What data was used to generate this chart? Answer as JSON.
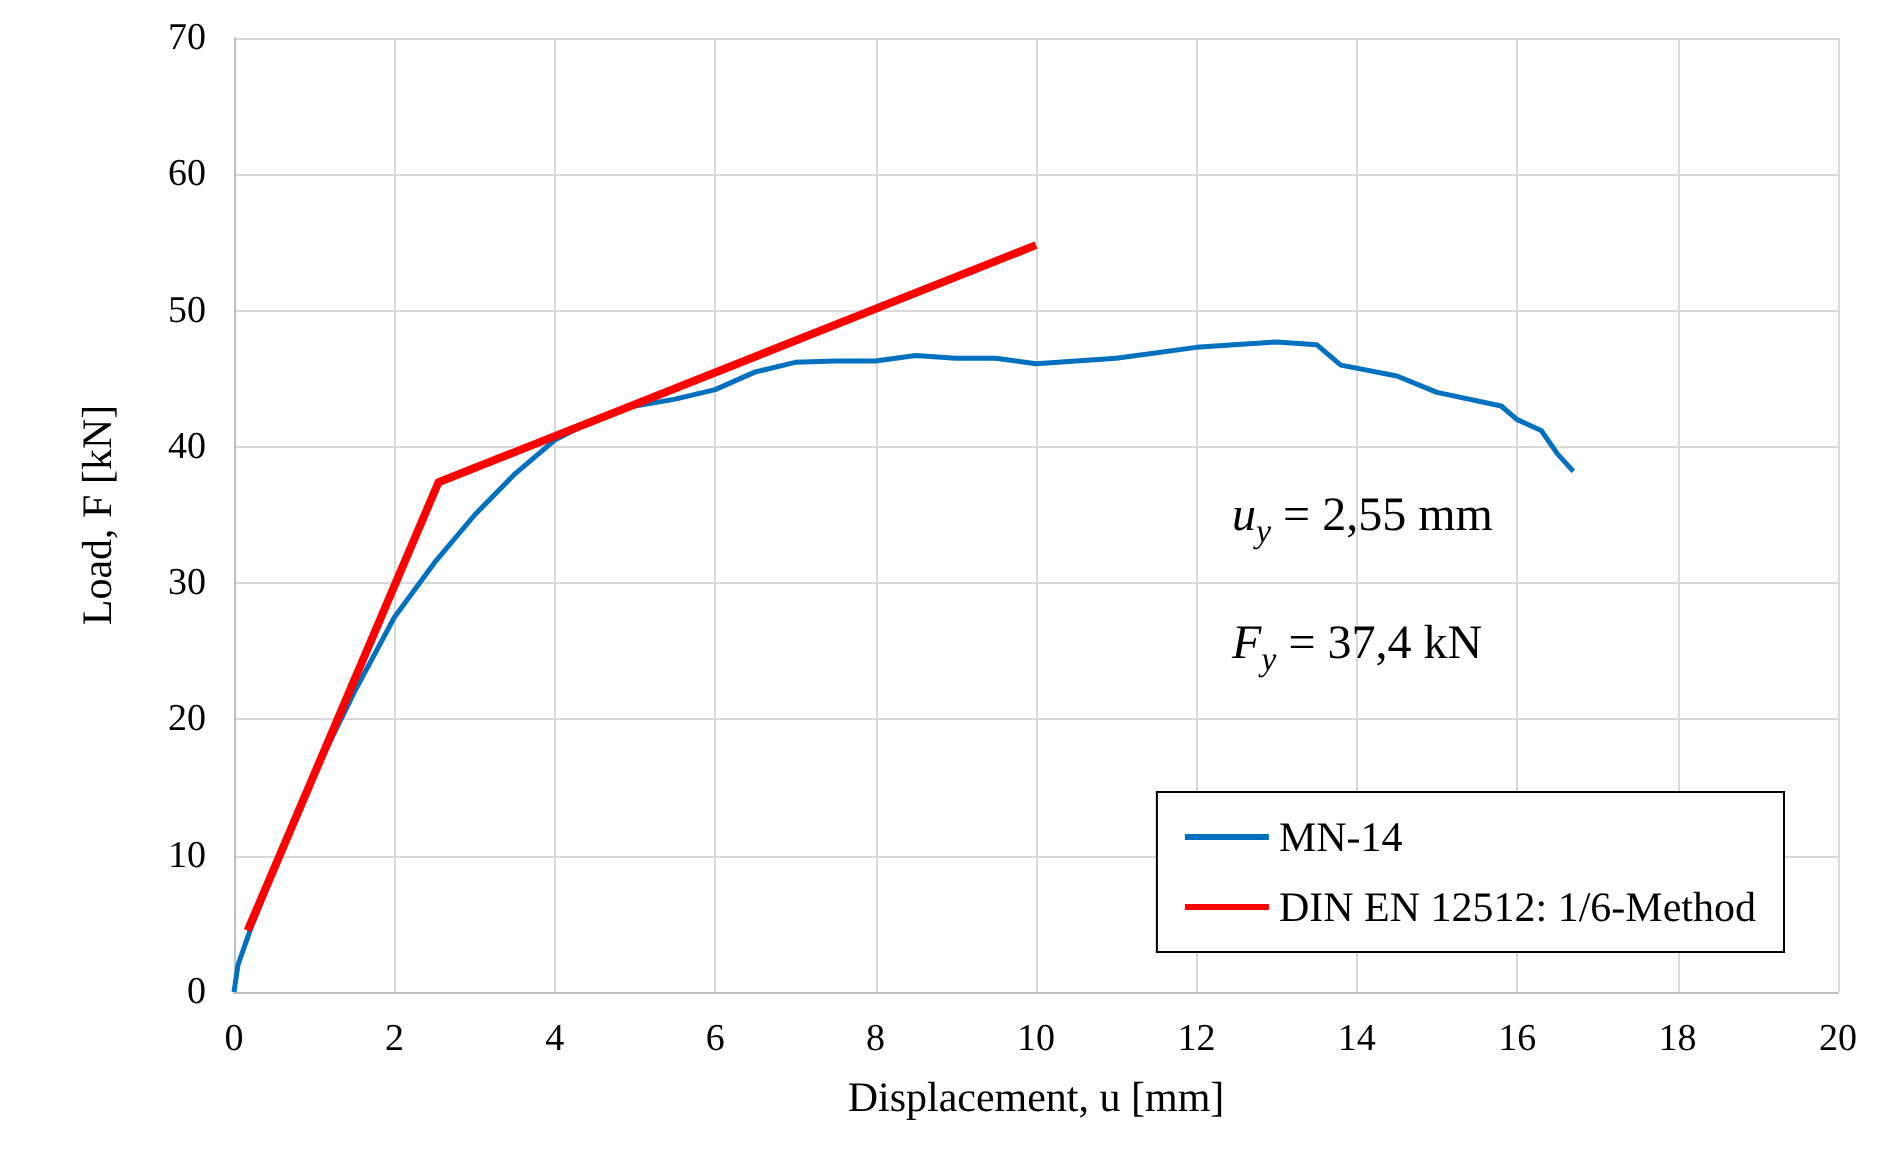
{
  "chart_data": {
    "type": "line",
    "xlabel": "Displacement, u [mm]",
    "ylabel": "Load, F [kN]",
    "xlim": [
      0,
      20
    ],
    "xticks": [
      0,
      2,
      4,
      6,
      8,
      10,
      12,
      14,
      16,
      18,
      20
    ],
    "ylim": [
      0,
      70
    ],
    "yticks": [
      0,
      10,
      20,
      30,
      40,
      50,
      60,
      70
    ],
    "grid": true,
    "legend": "bottom right",
    "marker": "none",
    "line_style": "solid",
    "annotations": [
      "u$_{y}$ = 2,55 mm",
      "F$_{y}$ = 37,4 kN"
    ],
    "series": [
      {
        "name": "MN-14",
        "color": "#0070c0",
        "x": [
          0,
          0.05,
          0.2,
          0.5,
          1,
          1.5,
          2,
          2.5,
          3,
          3.5,
          4,
          4.5,
          5,
          5.5,
          6,
          6.5,
          7,
          7.5,
          8,
          8.5,
          9,
          9.5,
          10,
          11,
          12,
          13,
          13.5,
          13.8,
          14.5,
          15,
          15.8,
          16,
          16.3,
          16.5,
          16.7
        ],
        "values": [
          0,
          2,
          4.5,
          9,
          16,
          22,
          27.5,
          31.5,
          35,
          38,
          40.5,
          42,
          43,
          43.5,
          44.2,
          45.5,
          46.2,
          46.3,
          46.3,
          46.7,
          46.5,
          46.5,
          46.1,
          46.5,
          47.3,
          47.7,
          47.5,
          46,
          45.2,
          44,
          43,
          42,
          41.2,
          39.5,
          38.2
        ]
      },
      {
        "name": "DIN EN 12512: 1/6-Method",
        "color": "#ff0000",
        "x": [
          0.17,
          2.55,
          10
        ],
        "values": [
          4.5,
          37.4,
          54.8
        ]
      }
    ]
  }
}
